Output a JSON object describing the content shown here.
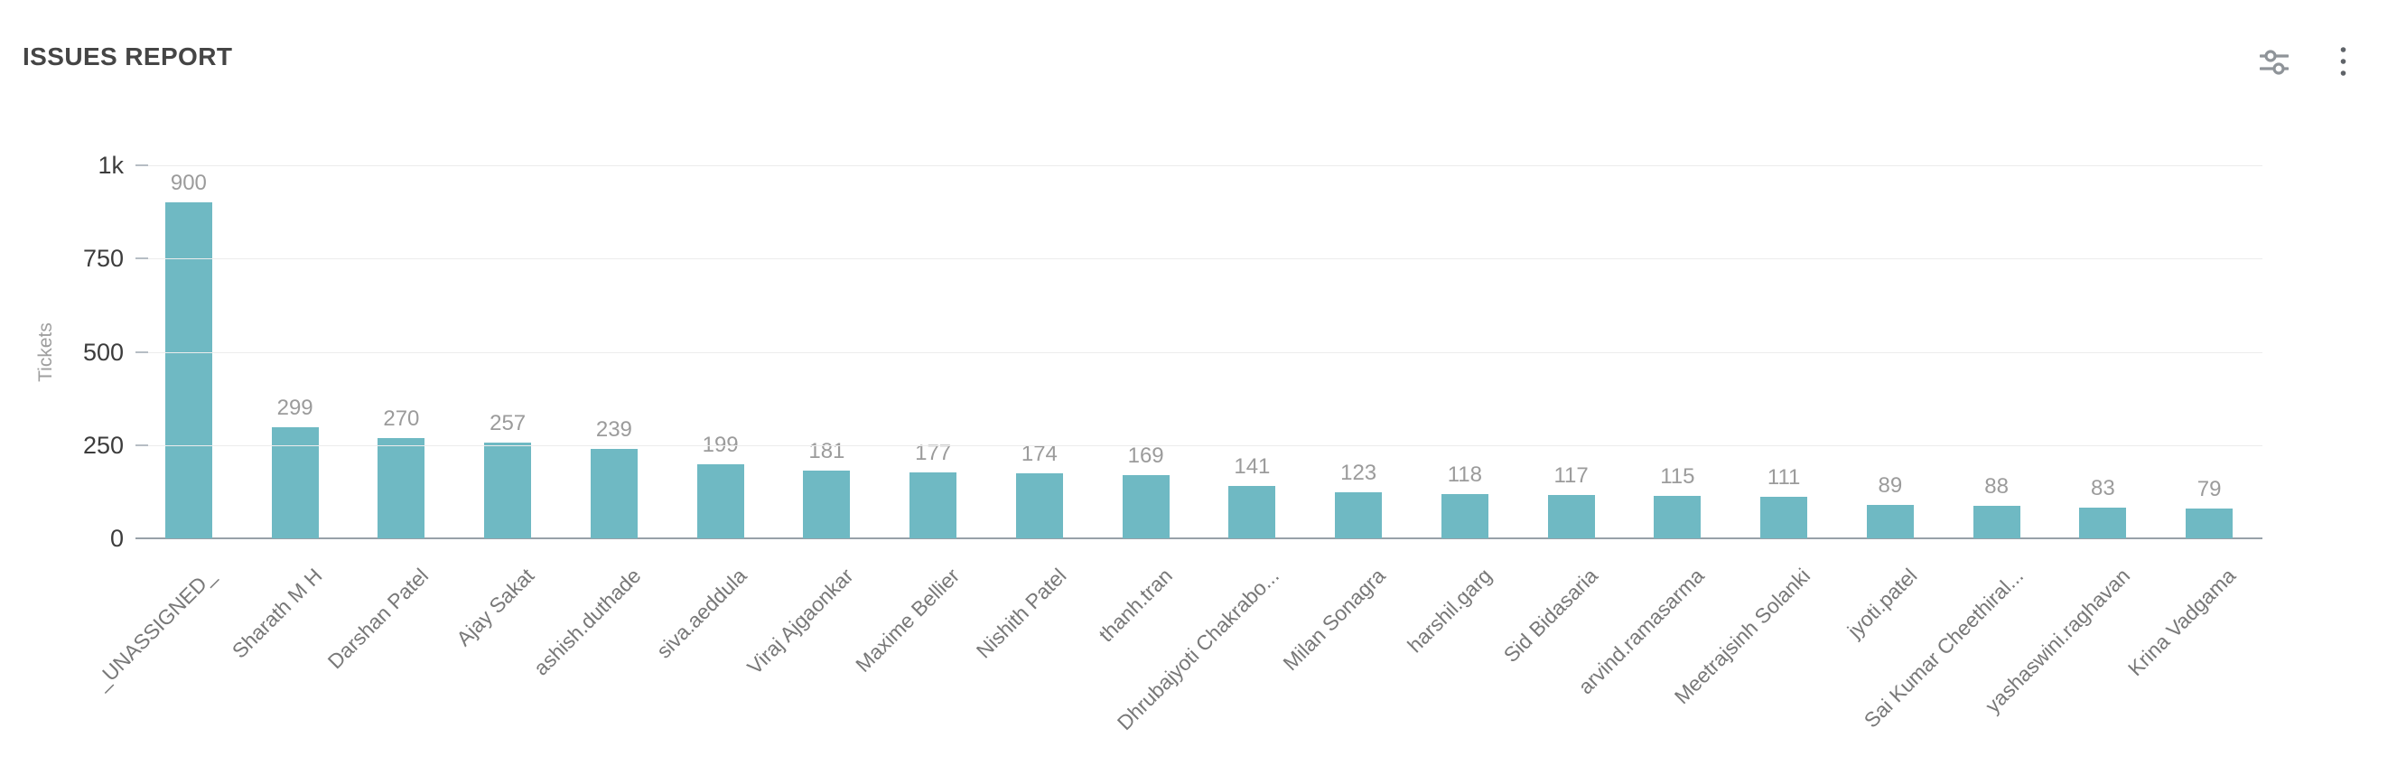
{
  "header": {
    "title": "ISSUES REPORT"
  },
  "toolbar": {
    "filter_icon": "tune-sliders-icon",
    "menu_icon": "kebab-menu-icon"
  },
  "chart_data": {
    "type": "bar",
    "title": "ISSUES REPORT",
    "xlabel": "",
    "ylabel": "Tickets",
    "ylim": [
      0,
      1000
    ],
    "grid": true,
    "legend": "none",
    "bar_color": "#6fb9c3",
    "value_label_color": "#9b9b9b",
    "yticks": [
      {
        "label": "0",
        "value": 0
      },
      {
        "label": "250",
        "value": 250
      },
      {
        "label": "500",
        "value": 500
      },
      {
        "label": "750",
        "value": 750
      },
      {
        "label": "1k",
        "value": 1000
      }
    ],
    "categories": [
      "_UNASSIGNED_",
      "Sharath M H",
      "Darshan Patel",
      "Ajay Sakat",
      "ashish.duthade",
      "siva.aeddula",
      "Viraj Ajgaonkar",
      "Maxime Bellier",
      "Nishith Patel",
      "thanh.tran",
      "Dhrubajyoti Chakrabo...",
      "Milan Sonagra",
      "harshil.garg",
      "Sid Bidasaria",
      "arvind.ramasarma",
      "Meetrajsinh Solanki",
      "jyoti.patel",
      "Sai Kumar Cheethiral...",
      "yashaswini.raghavan",
      "Krina Vadgama"
    ],
    "values": [
      900,
      299,
      270,
      257,
      239,
      199,
      181,
      177,
      174,
      169,
      141,
      123,
      118,
      117,
      115,
      111,
      89,
      88,
      83,
      79
    ]
  }
}
